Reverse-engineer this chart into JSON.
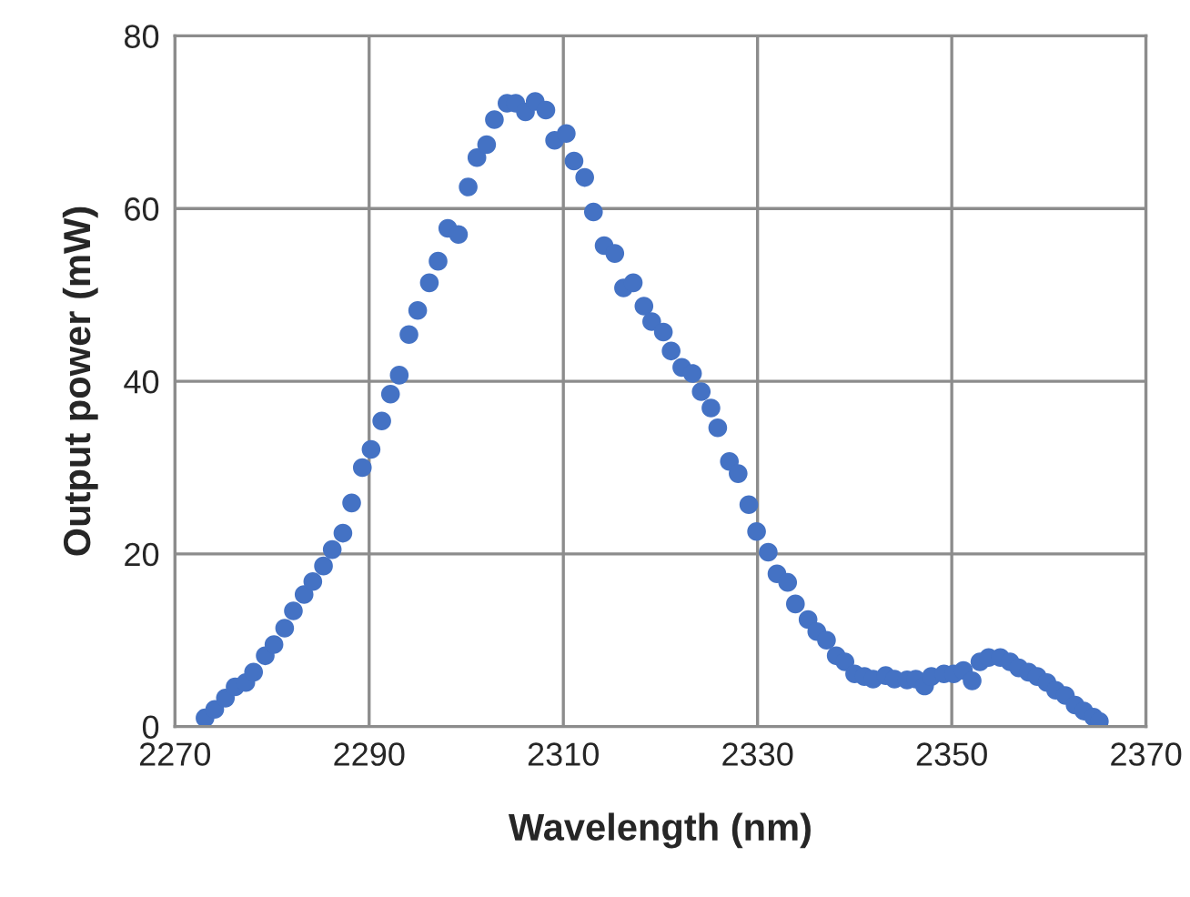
{
  "chart_data": {
    "type": "scatter",
    "xlabel": "Wavelength (nm)",
    "ylabel": "Output power (mW)",
    "xlim": [
      2270,
      2370
    ],
    "xticks": [
      2270,
      2290,
      2310,
      2330,
      2350,
      2370
    ],
    "ylim": [
      0,
      80
    ],
    "yticks": [
      0,
      20,
      40,
      60,
      80
    ],
    "grid": true,
    "marker": "circle",
    "series": [
      {
        "color": "#4472c4",
        "x": [
          2273.1,
          2274.1,
          2275.2,
          2276.2,
          2277.3,
          2278.1,
          2279.3,
          2280.2,
          2281.3,
          2282.2,
          2283.3,
          2284.2,
          2285.3,
          2286.2,
          2287.3,
          2288.2,
          2289.3,
          2290.2,
          2291.3,
          2292.2,
          2293.1,
          2294.1,
          2295.0,
          2296.2,
          2297.1,
          2298.1,
          2299.2,
          2300.2,
          2301.1,
          2302.1,
          2302.9,
          2304.2,
          2305.1,
          2306.1,
          2307.1,
          2308.2,
          2309.1,
          2310.3,
          2311.1,
          2312.2,
          2313.1,
          2314.2,
          2315.3,
          2316.2,
          2317.2,
          2318.3,
          2319.1,
          2320.3,
          2321.1,
          2322.2,
          2323.3,
          2324.2,
          2325.2,
          2325.9,
          2327.1,
          2328.0,
          2329.1,
          2329.9,
          2331.1,
          2332.0,
          2333.1,
          2333.9,
          2335.2,
          2336.1,
          2337.1,
          2338.1,
          2339.0,
          2340.0,
          2341.0,
          2341.9,
          2343.2,
          2344.1,
          2345.4,
          2346.3,
          2347.2,
          2347.9,
          2349.2,
          2350.2,
          2351.2,
          2352.1,
          2352.9,
          2353.8,
          2355.0,
          2356.0,
          2356.9,
          2357.9,
          2358.8,
          2359.8,
          2360.7,
          2361.7,
          2362.7,
          2363.6,
          2364.6,
          2365.2
        ],
        "values": [
          1.0,
          2.0,
          3.3,
          4.6,
          5.1,
          6.3,
          8.2,
          9.5,
          11.4,
          13.4,
          15.3,
          16.8,
          18.6,
          20.5,
          22.4,
          25.9,
          30.0,
          32.1,
          35.4,
          38.5,
          40.7,
          45.4,
          48.2,
          51.4,
          53.9,
          57.7,
          57.0,
          62.5,
          65.9,
          67.4,
          70.3,
          72.2,
          72.2,
          71.2,
          72.4,
          71.4,
          67.9,
          68.7,
          65.5,
          63.6,
          59.6,
          55.7,
          54.8,
          50.8,
          51.4,
          48.7,
          46.9,
          45.7,
          43.5,
          41.6,
          40.9,
          38.8,
          36.9,
          34.6,
          30.7,
          29.3,
          25.7,
          22.6,
          20.2,
          17.7,
          16.7,
          14.2,
          12.4,
          11.0,
          10.0,
          8.2,
          7.5,
          6.1,
          5.8,
          5.5,
          5.9,
          5.5,
          5.4,
          5.5,
          4.7,
          5.8,
          6.1,
          6.1,
          6.5,
          5.3,
          7.5,
          8.0,
          8.0,
          7.5,
          6.8,
          6.3,
          5.8,
          5.1,
          4.2,
          3.6,
          2.5,
          1.8,
          1.1,
          0.6
        ]
      }
    ]
  }
}
